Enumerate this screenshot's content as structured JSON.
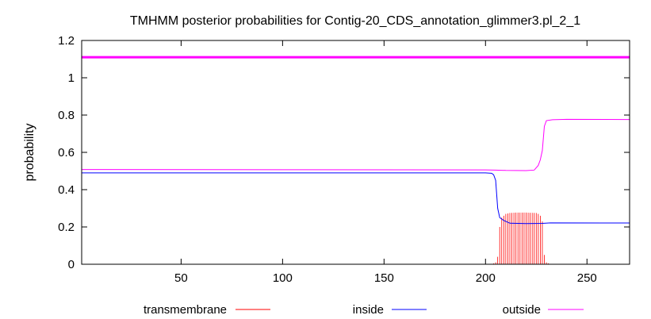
{
  "chart_data": {
    "type": "line",
    "title": "TMHMM posterior probabilities for Contig-20_CDS_annotation_glimmer3.pl_2_1",
    "xlabel": "",
    "ylabel": "probability",
    "xlim": [
      1,
      271
    ],
    "ylim": [
      0,
      1.2
    ],
    "x_ticks": [
      50,
      100,
      150,
      200,
      250
    ],
    "y_ticks": [
      "0",
      "0.2",
      "0.4",
      "0.6",
      "0.8",
      "1",
      "1.2"
    ],
    "grid": false,
    "legend_position": "bottom",
    "reference_line": {
      "y": 1.11,
      "color": "#ff00ff"
    },
    "series": [
      {
        "name": "transmembrane",
        "color": "#ff0000",
        "style": "impulses",
        "points": [
          [
            201,
            0.0
          ],
          [
            203,
            0.0
          ],
          [
            205,
            0.01
          ],
          [
            206,
            0.04
          ],
          [
            207,
            0.2
          ],
          [
            208,
            0.25
          ],
          [
            209,
            0.26
          ],
          [
            210,
            0.27
          ],
          [
            212,
            0.275
          ],
          [
            215,
            0.277
          ],
          [
            220,
            0.277
          ],
          [
            225,
            0.275
          ],
          [
            226,
            0.27
          ],
          [
            227,
            0.26
          ],
          [
            228,
            0.23
          ],
          [
            229,
            0.05
          ],
          [
            230,
            0.01
          ],
          [
            232,
            0.0
          ]
        ]
      },
      {
        "name": "inside",
        "color": "#0000ff",
        "style": "line",
        "points": [
          [
            1,
            0.49
          ],
          [
            100,
            0.49
          ],
          [
            200,
            0.49
          ],
          [
            203,
            0.488
          ],
          [
            204,
            0.48
          ],
          [
            205,
            0.45
          ],
          [
            206,
            0.3
          ],
          [
            207,
            0.25
          ],
          [
            209,
            0.235
          ],
          [
            212,
            0.22
          ],
          [
            220,
            0.218
          ],
          [
            228,
            0.219
          ],
          [
            232,
            0.222
          ],
          [
            271,
            0.221
          ]
        ]
      },
      {
        "name": "outside",
        "color": "#ff00ff",
        "style": "line",
        "points": [
          [
            1,
            0.508
          ],
          [
            100,
            0.507
          ],
          [
            200,
            0.506
          ],
          [
            205,
            0.505
          ],
          [
            210,
            0.503
          ],
          [
            220,
            0.502
          ],
          [
            224,
            0.505
          ],
          [
            226,
            0.53
          ],
          [
            227,
            0.56
          ],
          [
            228,
            0.61
          ],
          [
            229,
            0.74
          ],
          [
            230,
            0.77
          ],
          [
            233,
            0.775
          ],
          [
            240,
            0.777
          ],
          [
            271,
            0.776
          ]
        ]
      }
    ]
  }
}
